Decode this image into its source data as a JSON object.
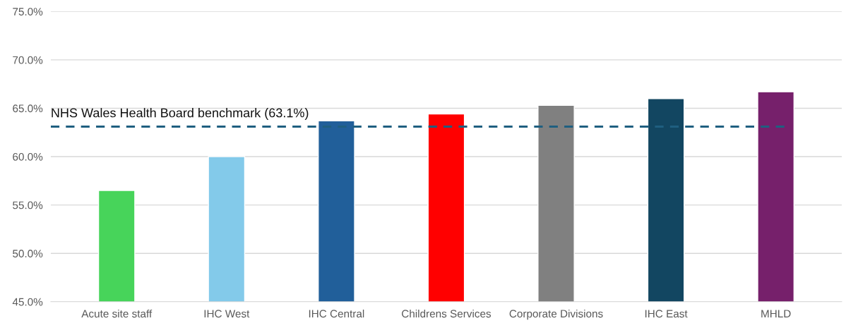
{
  "chart_data": {
    "type": "bar",
    "categories": [
      "Acute site staff",
      "IHC West",
      "IHC Central",
      "Childrens Services",
      "Corporate Divisions",
      "IHC East",
      "MHLD"
    ],
    "values": [
      56.5,
      60.0,
      63.7,
      64.4,
      65.3,
      66.0,
      66.7
    ],
    "colors": [
      "#47d45a",
      "#83caea",
      "#215f9a",
      "#ff0000",
      "#808080",
      "#124661",
      "#76206b"
    ],
    "ylim": [
      45,
      75
    ],
    "yticks": [
      {
        "value": 45,
        "label": "45.0%"
      },
      {
        "value": 50,
        "label": "50.0%"
      },
      {
        "value": 55,
        "label": "55.0%"
      },
      {
        "value": 60,
        "label": "60.0%"
      },
      {
        "value": 65,
        "label": "65.0%"
      },
      {
        "value": 70,
        "label": "70.0%"
      },
      {
        "value": 75,
        "label": "75.0%"
      }
    ],
    "grid": "y",
    "legend": false,
    "ref_lines": [
      {
        "axis": "y",
        "value": 63.1,
        "label": "NHS Wales Health Board benchmark (63.1%)",
        "color": "#1f5f80",
        "line_style": "dashed"
      }
    ]
  }
}
